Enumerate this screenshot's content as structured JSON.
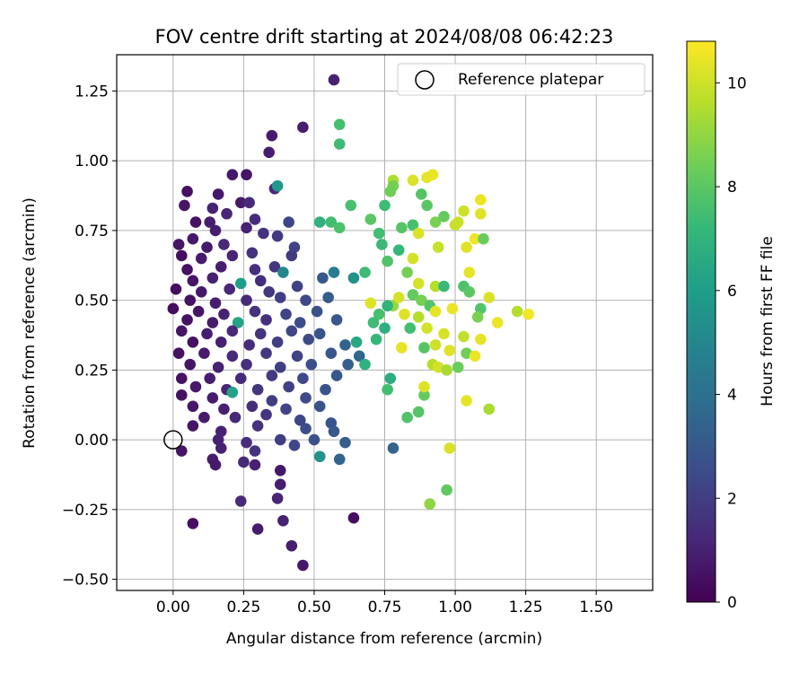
{
  "chart_data": {
    "type": "scatter",
    "title": "FOV centre drift starting at 2024/08/08 06:42:23",
    "xlabel": "Angular distance from reference (arcmin)",
    "ylabel": "Rotation from reference (arcmin)",
    "xlim": [
      -0.2,
      1.7
    ],
    "ylim": [
      -0.54,
      1.38
    ],
    "x_ticks": [
      "0.00",
      "0.25",
      "0.50",
      "0.75",
      "1.00",
      "1.25",
      "1.50"
    ],
    "x_tick_values": [
      0,
      0.25,
      0.5,
      0.75,
      1.0,
      1.25,
      1.5
    ],
    "y_ticks": [
      "−0.50",
      "−0.25",
      "0.00",
      "0.25",
      "0.50",
      "0.75",
      "1.00",
      "1.25"
    ],
    "y_tick_values": [
      -0.5,
      -0.25,
      0,
      0.25,
      0.5,
      0.75,
      1.0,
      1.25
    ],
    "grid": true,
    "legend": {
      "position": "top-right",
      "entries": [
        "Reference platepar"
      ]
    },
    "reference_point": {
      "x": 0.0,
      "y": 0.0
    },
    "colorbar": {
      "label": "Hours from first FF file",
      "range": [
        0,
        10.8
      ],
      "ticks": [
        "0",
        "2",
        "4",
        "6",
        "8",
        "10"
      ],
      "tick_values": [
        0,
        2,
        4,
        6,
        8,
        10
      ],
      "colormap": [
        "#440154",
        "#482878",
        "#3e4989",
        "#31688e",
        "#26828e",
        "#1f9e89",
        "#35b779",
        "#6ece58",
        "#b5de2b",
        "#fde725"
      ]
    },
    "points": [
      [
        0.57,
        1.29,
        1.0
      ],
      [
        0.46,
        1.12,
        0.9
      ],
      [
        0.35,
        1.09,
        0.8
      ],
      [
        0.34,
        1.03,
        0.9
      ],
      [
        0.21,
        0.95,
        0.7
      ],
      [
        0.26,
        0.95,
        0.6
      ],
      [
        0.05,
        0.89,
        0.5
      ],
      [
        0.04,
        0.84,
        0.6
      ],
      [
        0.16,
        0.88,
        0.7
      ],
      [
        0.24,
        0.85,
        0.8
      ],
      [
        0.36,
        0.9,
        1.2
      ],
      [
        0.37,
        0.91,
        5.8
      ],
      [
        0.14,
        0.83,
        1.0
      ],
      [
        0.27,
        0.85,
        1.3
      ],
      [
        0.13,
        0.78,
        0.9
      ],
      [
        0.08,
        0.78,
        0.5
      ],
      [
        0.19,
        0.81,
        1.1
      ],
      [
        0.29,
        0.79,
        1.4
      ],
      [
        0.15,
        0.75,
        0.9
      ],
      [
        0.26,
        0.76,
        1.0
      ],
      [
        0.41,
        0.78,
        2.3
      ],
      [
        0.32,
        0.74,
        1.6
      ],
      [
        0.37,
        0.73,
        1.8
      ],
      [
        0.02,
        0.7,
        0.6
      ],
      [
        0.07,
        0.72,
        0.7
      ],
      [
        0.12,
        0.69,
        0.8
      ],
      [
        0.18,
        0.7,
        1.2
      ],
      [
        0.43,
        0.69,
        2.2
      ],
      [
        0.03,
        0.66,
        0.4
      ],
      [
        0.1,
        0.65,
        0.8
      ],
      [
        0.21,
        0.66,
        1.1
      ],
      [
        0.28,
        0.67,
        1.6
      ],
      [
        0.42,
        0.66,
        1.9
      ],
      [
        0.36,
        0.62,
        1.7
      ],
      [
        0.05,
        0.61,
        0.5
      ],
      [
        0.17,
        0.62,
        0.9
      ],
      [
        0.29,
        0.61,
        1.5
      ],
      [
        0.39,
        0.6,
        5.0
      ],
      [
        0.53,
        0.58,
        3.0
      ],
      [
        0.57,
        0.6,
        4.5
      ],
      [
        0.07,
        0.57,
        0.6
      ],
      [
        0.14,
        0.58,
        1.0
      ],
      [
        0.24,
        0.56,
        6.0
      ],
      [
        0.31,
        0.57,
        1.4
      ],
      [
        0.44,
        0.55,
        2.1
      ],
      [
        0.01,
        0.54,
        0.4
      ],
      [
        0.1,
        0.53,
        0.7
      ],
      [
        0.2,
        0.54,
        1.2
      ],
      [
        0.34,
        0.53,
        1.7
      ],
      [
        0.06,
        0.5,
        0.5
      ],
      [
        0.15,
        0.49,
        0.9
      ],
      [
        0.26,
        0.5,
        1.3
      ],
      [
        0.38,
        0.51,
        2.0
      ],
      [
        0.47,
        0.5,
        2.4
      ],
      [
        0.55,
        0.51,
        3.1
      ],
      [
        0.0,
        0.47,
        0.4
      ],
      [
        0.09,
        0.46,
        0.6
      ],
      [
        0.18,
        0.45,
        1.0
      ],
      [
        0.29,
        0.46,
        1.6
      ],
      [
        0.4,
        0.45,
        2.2
      ],
      [
        0.51,
        0.46,
        2.7
      ],
      [
        0.05,
        0.43,
        0.5
      ],
      [
        0.14,
        0.42,
        0.8
      ],
      [
        0.23,
        0.42,
        6.3
      ],
      [
        0.33,
        0.43,
        1.5
      ],
      [
        0.45,
        0.42,
        2.5
      ],
      [
        0.58,
        0.43,
        3.0
      ],
      [
        0.03,
        0.39,
        0.6
      ],
      [
        0.12,
        0.38,
        0.9
      ],
      [
        0.21,
        0.39,
        1.2
      ],
      [
        0.31,
        0.38,
        1.6
      ],
      [
        0.42,
        0.39,
        2.3
      ],
      [
        0.52,
        0.38,
        2.8
      ],
      [
        0.07,
        0.35,
        0.5
      ],
      [
        0.17,
        0.35,
        1.0
      ],
      [
        0.27,
        0.34,
        1.4
      ],
      [
        0.37,
        0.35,
        2.0
      ],
      [
        0.48,
        0.36,
        2.5
      ],
      [
        0.61,
        0.34,
        3.4
      ],
      [
        0.02,
        0.31,
        0.5
      ],
      [
        0.11,
        0.31,
        0.8
      ],
      [
        0.21,
        0.3,
        1.2
      ],
      [
        0.33,
        0.31,
        1.8
      ],
      [
        0.44,
        0.3,
        2.2
      ],
      [
        0.56,
        0.31,
        2.9
      ],
      [
        0.66,
        0.3,
        3.6
      ],
      [
        0.06,
        0.27,
        0.6
      ],
      [
        0.16,
        0.26,
        1.0
      ],
      [
        0.26,
        0.27,
        1.5
      ],
      [
        0.38,
        0.26,
        2.0
      ],
      [
        0.49,
        0.27,
        2.6
      ],
      [
        0.62,
        0.27,
        3.2
      ],
      [
        0.03,
        0.22,
        0.5
      ],
      [
        0.13,
        0.22,
        0.9
      ],
      [
        0.24,
        0.22,
        1.3
      ],
      [
        0.35,
        0.23,
        1.9
      ],
      [
        0.46,
        0.22,
        2.4
      ],
      [
        0.58,
        0.23,
        3.0
      ],
      [
        0.08,
        0.19,
        0.7
      ],
      [
        0.19,
        0.18,
        1.1
      ],
      [
        0.3,
        0.18,
        1.7
      ],
      [
        0.41,
        0.19,
        2.1
      ],
      [
        0.54,
        0.18,
        2.8
      ],
      [
        0.03,
        0.16,
        0.5
      ],
      [
        0.14,
        0.15,
        0.9
      ],
      [
        0.21,
        0.17,
        6.2
      ],
      [
        0.35,
        0.14,
        2.0
      ],
      [
        0.47,
        0.15,
        2.5
      ],
      [
        0.07,
        0.12,
        0.7
      ],
      [
        0.18,
        0.11,
        1.0
      ],
      [
        0.28,
        0.12,
        1.5
      ],
      [
        0.4,
        0.11,
        2.2
      ],
      [
        0.52,
        0.12,
        2.7
      ],
      [
        0.11,
        0.08,
        0.8
      ],
      [
        0.22,
        0.08,
        1.2
      ],
      [
        0.33,
        0.09,
        1.7
      ],
      [
        0.45,
        0.07,
        2.3
      ],
      [
        0.56,
        0.06,
        2.9
      ],
      [
        0.07,
        0.05,
        0.6
      ],
      [
        0.17,
        0.03,
        1.0
      ],
      [
        0.3,
        0.05,
        1.6
      ],
      [
        0.47,
        0.04,
        2.6
      ],
      [
        0.57,
        0.03,
        3.0
      ],
      [
        0.16,
        0.0,
        1.0
      ],
      [
        0.26,
        -0.01,
        1.4
      ],
      [
        0.38,
        0.0,
        2.0
      ],
      [
        0.5,
        0.0,
        2.7
      ],
      [
        0.61,
        -0.01,
        3.2
      ],
      [
        0.03,
        -0.04,
        0.6
      ],
      [
        0.17,
        -0.03,
        1.0
      ],
      [
        0.29,
        -0.04,
        1.6
      ],
      [
        0.43,
        -0.02,
        2.3
      ],
      [
        0.52,
        -0.06,
        5.5
      ],
      [
        0.59,
        -0.07,
        3.5
      ],
      [
        0.14,
        -0.07,
        0.9
      ],
      [
        0.25,
        -0.08,
        1.3
      ],
      [
        0.38,
        -0.11,
        0.7
      ],
      [
        0.15,
        -0.09,
        0.8
      ],
      [
        0.29,
        -0.09,
        1.0
      ],
      [
        0.78,
        -0.03,
        3.5
      ],
      [
        0.38,
        -0.16,
        0.9
      ],
      [
        0.37,
        -0.21,
        1.1
      ],
      [
        0.24,
        -0.22,
        1.3
      ],
      [
        0.39,
        -0.29,
        1.0
      ],
      [
        0.3,
        -0.32,
        0.8
      ],
      [
        0.07,
        -0.3,
        0.5
      ],
      [
        0.42,
        -0.38,
        0.9
      ],
      [
        0.46,
        -0.45,
        0.7
      ],
      [
        0.64,
        -0.28,
        0.4
      ],
      [
        0.59,
        1.13,
        7.6
      ],
      [
        0.59,
        1.06,
        7.4
      ],
      [
        0.78,
        0.93,
        9.5
      ],
      [
        0.85,
        0.93,
        10.2
      ],
      [
        0.92,
        0.95,
        10.5
      ],
      [
        0.9,
        0.94,
        10.4
      ],
      [
        0.78,
        0.91,
        8.5
      ],
      [
        0.77,
        0.89,
        8.4
      ],
      [
        0.88,
        0.88,
        7.9
      ],
      [
        0.63,
        0.84,
        7.6
      ],
      [
        0.75,
        0.84,
        7.4
      ],
      [
        0.9,
        0.84,
        8.0
      ],
      [
        0.96,
        0.8,
        8.2
      ],
      [
        1.03,
        0.82,
        10.0
      ],
      [
        1.09,
        0.86,
        10.5
      ],
      [
        1.09,
        0.81,
        10.3
      ],
      [
        0.56,
        0.78,
        7.5
      ],
      [
        0.52,
        0.78,
        6.9
      ],
      [
        0.7,
        0.79,
        8.0
      ],
      [
        0.85,
        0.77,
        7.6
      ],
      [
        0.93,
        0.78,
        8.6
      ],
      [
        1.01,
        0.78,
        10.0
      ],
      [
        1.0,
        0.77,
        9.9
      ],
      [
        0.59,
        0.76,
        7.7
      ],
      [
        0.81,
        0.76,
        7.9
      ],
      [
        0.87,
        0.74,
        10.2
      ],
      [
        1.07,
        0.72,
        10.5
      ],
      [
        1.1,
        0.72,
        8.3
      ],
      [
        0.73,
        0.74,
        7.5
      ],
      [
        0.74,
        0.7,
        7.3
      ],
      [
        0.8,
        0.68,
        7.2
      ],
      [
        0.94,
        0.69,
        9.9
      ],
      [
        1.04,
        0.69,
        10.3
      ],
      [
        0.85,
        0.65,
        10.1
      ],
      [
        0.76,
        0.64,
        7.8
      ],
      [
        0.68,
        0.6,
        7.4
      ],
      [
        0.64,
        0.58,
        5.5
      ],
      [
        0.83,
        0.6,
        8.5
      ],
      [
        0.87,
        0.56,
        10.1
      ],
      [
        0.93,
        0.55,
        9.6
      ],
      [
        1.05,
        0.6,
        10.4
      ],
      [
        1.03,
        0.55,
        7.7
      ],
      [
        0.7,
        0.49,
        10.3
      ],
      [
        0.78,
        0.48,
        9.1
      ],
      [
        0.8,
        0.51,
        10.1
      ],
      [
        0.85,
        0.52,
        8.2
      ],
      [
        0.88,
        0.5,
        8.5
      ],
      [
        0.91,
        0.48,
        7.8
      ],
      [
        0.96,
        0.55,
        7.3
      ],
      [
        1.05,
        0.53,
        8.0
      ],
      [
        1.12,
        0.51,
        10.2
      ],
      [
        1.09,
        0.47,
        7.8
      ],
      [
        0.76,
        0.48,
        7.0
      ],
      [
        0.73,
        0.45,
        7.6
      ],
      [
        0.82,
        0.45,
        10.3
      ],
      [
        0.87,
        0.44,
        9.6
      ],
      [
        0.93,
        0.46,
        10.4
      ],
      [
        0.99,
        0.47,
        10.5
      ],
      [
        1.08,
        0.44,
        8.6
      ],
      [
        1.15,
        0.42,
        10.5
      ],
      [
        1.22,
        0.46,
        9.6
      ],
      [
        1.26,
        0.45,
        10.6
      ],
      [
        0.71,
        0.42,
        7.4
      ],
      [
        0.75,
        0.4,
        6.8
      ],
      [
        0.84,
        0.4,
        7.5
      ],
      [
        0.9,
        0.4,
        10.1
      ],
      [
        0.96,
        0.38,
        10.2
      ],
      [
        1.03,
        0.37,
        9.8
      ],
      [
        1.09,
        0.36,
        10.4
      ],
      [
        0.72,
        0.36,
        7.2
      ],
      [
        0.65,
        0.35,
        6.5
      ],
      [
        0.81,
        0.33,
        10.4
      ],
      [
        0.89,
        0.33,
        7.9
      ],
      [
        0.93,
        0.34,
        10.0
      ],
      [
        0.98,
        0.32,
        10.3
      ],
      [
        1.04,
        0.31,
        8.4
      ],
      [
        1.07,
        0.3,
        10.5
      ],
      [
        0.68,
        0.27,
        6.9
      ],
      [
        0.77,
        0.22,
        6.7
      ],
      [
        0.92,
        0.27,
        9.6
      ],
      [
        0.94,
        0.26,
        10.1
      ],
      [
        0.97,
        0.25,
        9.4
      ],
      [
        1.01,
        0.26,
        8.3
      ],
      [
        0.89,
        0.16,
        8.2
      ],
      [
        0.89,
        0.19,
        10.3
      ],
      [
        0.76,
        0.18,
        7.5
      ],
      [
        0.83,
        0.08,
        7.8
      ],
      [
        0.87,
        0.1,
        7.9
      ],
      [
        1.04,
        0.14,
        10.4
      ],
      [
        1.12,
        0.11,
        9.4
      ],
      [
        0.98,
        -0.03,
        10.2
      ],
      [
        0.97,
        -0.18,
        8.1
      ],
      [
        0.91,
        -0.23,
        9.0
      ]
    ]
  }
}
